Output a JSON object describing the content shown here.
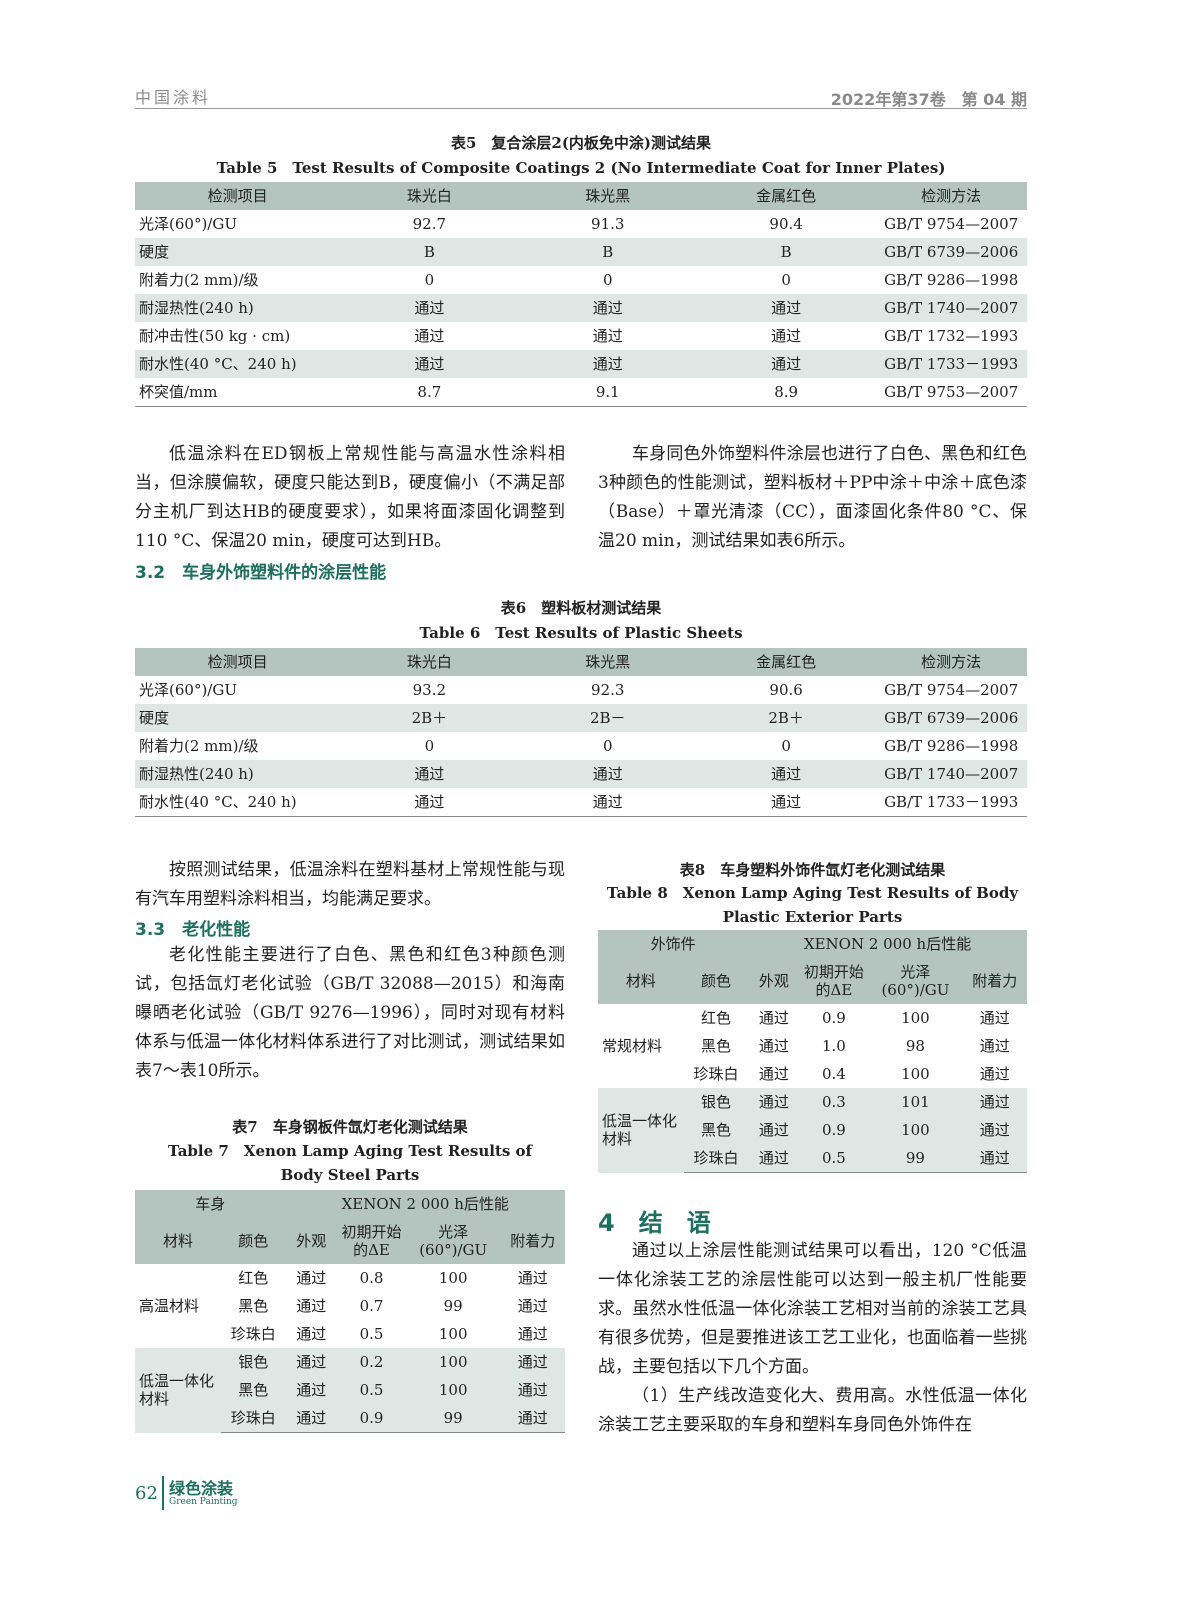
{
  "header": {
    "journal": "中国涂料",
    "issue": "2022年第37卷　第 04 期"
  },
  "table5": {
    "caption_cn": "表5　复合涂层2(内板免中涂)测试结果",
    "caption_en": "Table 5　Test Results of Composite Coatings 2 (No Intermediate Coat for Inner Plates)",
    "columns": [
      "检测项目",
      "珠光白",
      "珠光黑",
      "金属红色",
      "检测方法"
    ],
    "rows": [
      [
        "光泽(60°)/GU",
        "92.7",
        "91.3",
        "90.4",
        "GB/T 9754—2007"
      ],
      [
        "硬度",
        "B",
        "B",
        "B",
        "GB/T 6739—2006"
      ],
      [
        "附着力(2 mm)/级",
        "0",
        "0",
        "0",
        "GB/T 9286—1998"
      ],
      [
        "耐湿热性(240 h)",
        "通过",
        "通过",
        "通过",
        "GB/T 1740—2007"
      ],
      [
        "耐冲击性(50 kg · cm)",
        "通过",
        "通过",
        "通过",
        "GB/T 1732—1993"
      ],
      [
        "耐水性(40 °C、240 h)",
        "通过",
        "通过",
        "通过",
        "GB/T 1733－1993"
      ],
      [
        "杯突值/mm",
        "8.7",
        "9.1",
        "8.9",
        "GB/T 9753—2007"
      ]
    ]
  },
  "para1": "低温涂料在ED钢板上常规性能与高温水性涂料相当，但涂膜偏软，硬度只能达到B，硬度偏小（不满足部分主机厂到达HB的硬度要求），如果将面漆固化调整到110 °C、保温20 min，硬度可达到HB。",
  "para2": "车身同色外饰塑料件涂层也进行了白色、黑色和红色3种颜色的性能测试，塑料板材＋PP中涂＋中涂＋底色漆（Base）＋罩光清漆（CC），面漆固化条件80 °C、保温20 min，测试结果如表6所示。",
  "heading_3_2": "3.2　车身外饰塑料件的涂层性能",
  "table6": {
    "caption_cn": "表6　塑料板材测试结果",
    "caption_en": "Table 6　Test Results of Plastic Sheets",
    "columns": [
      "检测项目",
      "珠光白",
      "珠光黑",
      "金属红色",
      "检测方法"
    ],
    "rows": [
      [
        "光泽(60°)/GU",
        "93.2",
        "92.3",
        "90.6",
        "GB/T 9754—2007"
      ],
      [
        "硬度",
        "2B＋",
        "2B－",
        "2B＋",
        "GB/T 6739—2006"
      ],
      [
        "附着力(2 mm)/级",
        "0",
        "0",
        "0",
        "GB/T 9286—1998"
      ],
      [
        "耐湿热性(240 h)",
        "通过",
        "通过",
        "通过",
        "GB/T 1740—2007"
      ],
      [
        "耐水性(40 °C、240 h)",
        "通过",
        "通过",
        "通过",
        "GB/T 1733－1993"
      ]
    ]
  },
  "para3": "按照测试结果，低温涂料在塑料基材上常规性能与现有汽车用塑料涂料相当，均能满足要求。",
  "heading_3_3": "3.3　老化性能",
  "para4": "老化性能主要进行了白色、黑色和红色3种颜色测试，包括氙灯老化试验（GB/T 32088—2015）和海南曝晒老化试验（GB/T 9276—1996），同时对现有材料体系与低温一体化材料体系进行了对比测试，测试结果如表7～表10所示。",
  "table7": {
    "caption_cn": "表7　车身钢板件氙灯老化测试结果",
    "caption_en": "Table 7　Xenon Lamp Aging Test Results of Body Steel Parts",
    "group_headers": [
      "车身",
      "XENON 2 000 h后性能"
    ],
    "columns": [
      "材料",
      "颜色",
      "外观",
      "初期开始的ΔE",
      "光泽(60°)/GU",
      "附着力"
    ],
    "groups": [
      {
        "material": "高温材料",
        "rows": [
          [
            "红色",
            "通过",
            "0.8",
            "100",
            "通过"
          ],
          [
            "黑色",
            "通过",
            "0.7",
            "99",
            "通过"
          ],
          [
            "珍珠白",
            "通过",
            "0.5",
            "100",
            "通过"
          ]
        ]
      },
      {
        "material": "低温一体化材料",
        "rows": [
          [
            "银色",
            "通过",
            "0.2",
            "100",
            "通过"
          ],
          [
            "黑色",
            "通过",
            "0.5",
            "100",
            "通过"
          ],
          [
            "珍珠白",
            "通过",
            "0.9",
            "99",
            "通过"
          ]
        ]
      }
    ]
  },
  "table8": {
    "caption_cn": "表8　车身塑料外饰件氙灯老化测试结果",
    "caption_en": "Table 8　Xenon Lamp Aging Test Results of Body Plastic Exterior Parts",
    "group_headers": [
      "外饰件",
      "XENON 2 000 h后性能"
    ],
    "columns": [
      "材料",
      "颜色",
      "外观",
      "初期开始的ΔE",
      "光泽(60°)/GU",
      "附着力"
    ],
    "groups": [
      {
        "material": "常规材料",
        "rows": [
          [
            "红色",
            "通过",
            "0.9",
            "100",
            "通过"
          ],
          [
            "黑色",
            "通过",
            "1.0",
            "98",
            "通过"
          ],
          [
            "珍珠白",
            "通过",
            "0.4",
            "100",
            "通过"
          ]
        ]
      },
      {
        "material": "低温一体化材料",
        "rows": [
          [
            "银色",
            "通过",
            "0.3",
            "101",
            "通过"
          ],
          [
            "黑色",
            "通过",
            "0.9",
            "100",
            "通过"
          ],
          [
            "珍珠白",
            "通过",
            "0.5",
            "99",
            "通过"
          ]
        ]
      }
    ]
  },
  "heading_4": "4　结　语",
  "para5": "通过以上涂层性能测试结果可以看出，120 °C低温一体化涂装工艺的涂层性能可以达到一般主机厂性能要求。虽然水性低温一体化涂装工艺相对当前的涂装工艺具有很多优势，但是要推进该工艺工业化，也面临着一些挑战，主要包括以下几个方面。",
  "para6": "（1）生产线改造变化大、费用高。水性低温一体化涂装工艺主要采取的车身和塑料车身同色外饰件在",
  "footer": {
    "page": "62",
    "journal_cn": "绿色涂装",
    "journal_en": "Green Painting"
  }
}
